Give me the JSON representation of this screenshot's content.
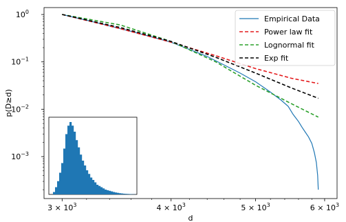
{
  "chart_data": [
    {
      "type": "line",
      "panel": "main",
      "xlabel": "d",
      "ylabel": "p(D≥d)",
      "xscale": "log",
      "yscale": "log",
      "xlim": [
        2860,
        6200
      ],
      "ylim": [
        0.00013,
        1.4
      ],
      "x_ticks": [
        {
          "value": 3000,
          "label": "3 × 10",
          "exp": "3"
        },
        {
          "value": 4000,
          "label": "4 × 10",
          "exp": "3"
        },
        {
          "value": 5000,
          "label": "5 × 10",
          "exp": "3"
        },
        {
          "value": 6000,
          "label": "6 × 10",
          "exp": "3"
        }
      ],
      "y_ticks": [
        {
          "value": 1,
          "label": "10",
          "exp": "0"
        },
        {
          "value": 0.1,
          "label": "10",
          "exp": "−1"
        },
        {
          "value": 0.01,
          "label": "10",
          "exp": "−2"
        },
        {
          "value": 0.001,
          "label": "10",
          "exp": "−3"
        }
      ],
      "legend_position": "top-right",
      "grid": false,
      "series": [
        {
          "name": "Empirical Data",
          "color": "#1f77b4",
          "dash": "solid",
          "x": [
            3000,
            3300,
            3600,
            4000,
            4400,
            4800,
            5000,
            5200,
            5350,
            5450,
            5520,
            5600,
            5650,
            5700,
            5750,
            5800,
            5840,
            5870,
            5890,
            5900
          ],
          "y": [
            1.0,
            0.66,
            0.44,
            0.26,
            0.13,
            0.058,
            0.038,
            0.023,
            0.0155,
            0.0115,
            0.0078,
            0.0055,
            0.0042,
            0.0033,
            0.0026,
            0.0019,
            0.0012,
            0.00075,
            0.0004,
            0.0002
          ]
        },
        {
          "name": "Power law fit",
          "color": "#e41a1c",
          "dash": "dashed",
          "x": [
            3000,
            3500,
            4000,
            4500,
            5000,
            5500,
            5900
          ],
          "y": [
            1.0,
            0.5,
            0.26,
            0.135,
            0.072,
            0.045,
            0.035
          ]
        },
        {
          "name": "Lognormal fit",
          "color": "#2ca02c",
          "dash": "dashed",
          "x": [
            3000,
            3500,
            4000,
            4500,
            5000,
            5500,
            5900
          ],
          "y": [
            1.0,
            0.6,
            0.27,
            0.1,
            0.032,
            0.013,
            0.0068
          ]
        },
        {
          "name": "Exp fit",
          "color": "#000000",
          "dash": "dashed",
          "x": [
            3000,
            3500,
            4000,
            4500,
            5000,
            5500,
            5900
          ],
          "y": [
            1.0,
            0.53,
            0.27,
            0.125,
            0.058,
            0.028,
            0.017
          ]
        }
      ]
    },
    {
      "type": "bar",
      "panel": "inset",
      "grid": false,
      "color": "#1f77b4",
      "values": [
        2,
        6,
        11,
        18,
        26,
        38,
        50,
        57,
        60,
        57,
        52,
        45,
        39,
        33,
        28,
        24,
        20,
        17,
        14,
        12,
        10,
        8,
        7,
        6,
        5,
        4,
        3.5,
        3,
        2.5,
        2,
        1.6,
        1.3,
        1.0,
        0.8,
        0.6,
        0.5,
        0.4,
        0.3,
        0.2,
        0.15
      ],
      "ylim": [
        0,
        64
      ]
    }
  ]
}
